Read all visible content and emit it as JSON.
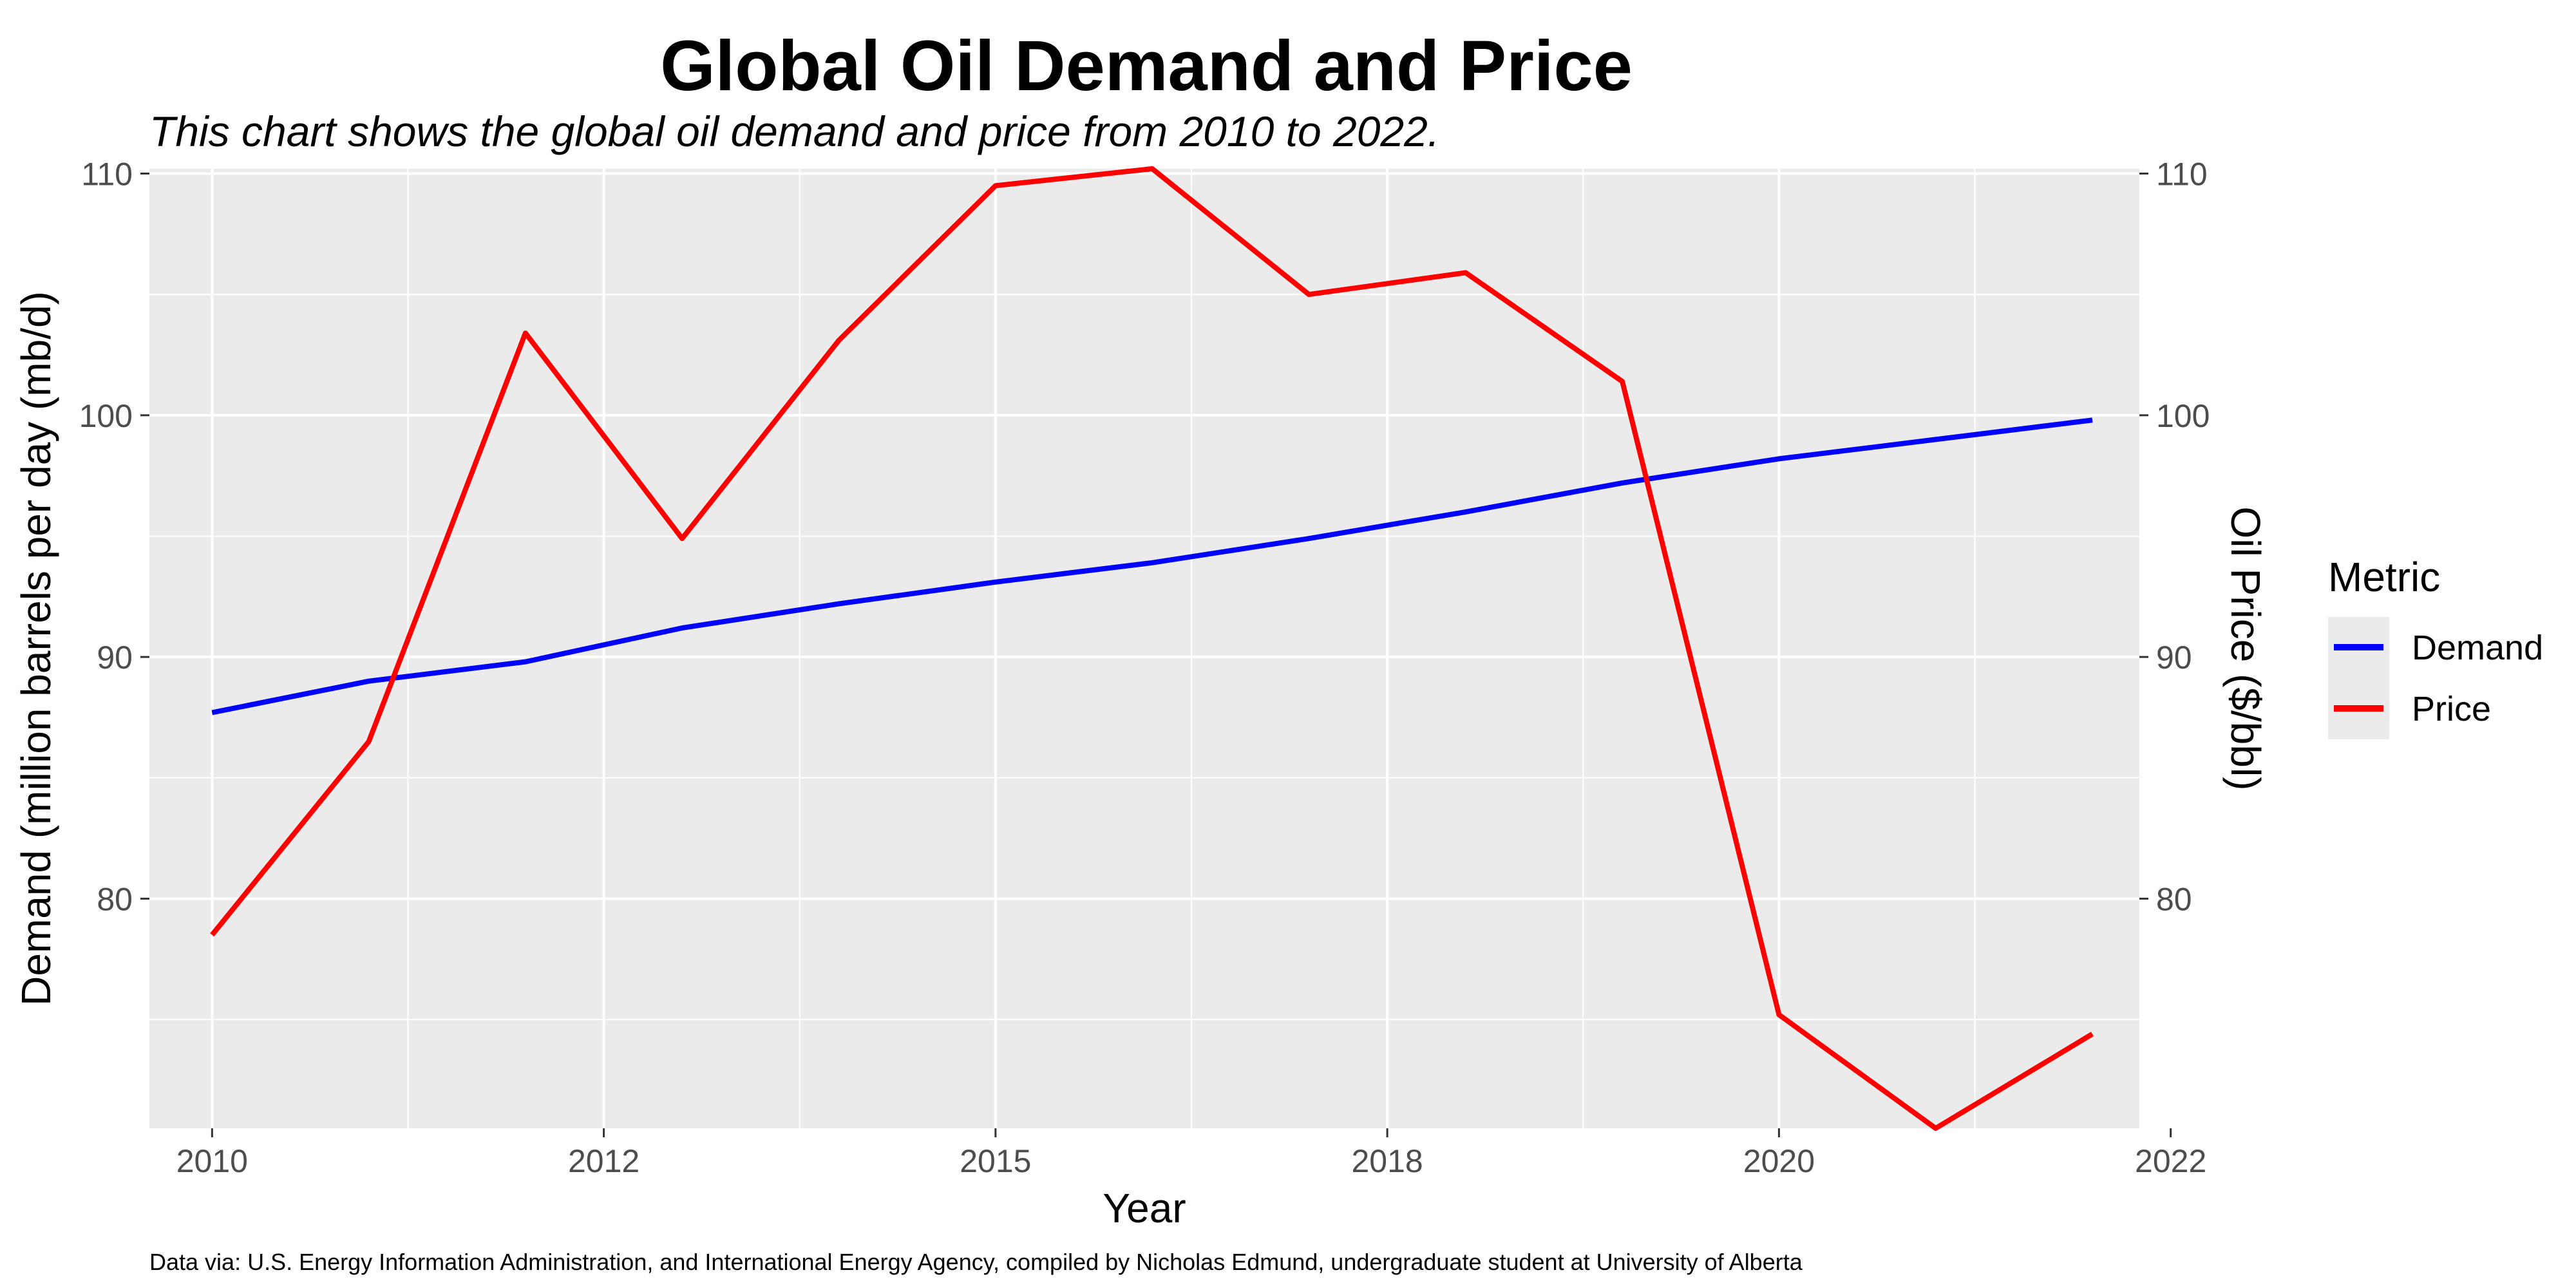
{
  "chart_data": {
    "type": "line",
    "title": "Global Oil Demand and Price",
    "subtitle": "This chart shows the global oil demand and price from 2010 to 2022.",
    "xlabel": "Year",
    "ylabel": "Demand (million barrels per day (mb/d)",
    "y2label": "Oil Price ($/bbl)",
    "caption": "Data via: U.S. Energy Information Administration, and International Energy Agency, compiled by Nicholas Edmund, undergraduate student at University of Alberta",
    "xlim": [
      2009.6,
      2022.3
    ],
    "ylim": [
      70.5,
      110.2
    ],
    "x_ticks": [
      {
        "value": 2010,
        "label": "2010"
      },
      {
        "value": 2012.5,
        "label": "2012"
      },
      {
        "value": 2015,
        "label": "2015"
      },
      {
        "value": 2017.5,
        "label": "2018"
      },
      {
        "value": 2020,
        "label": "2020"
      },
      {
        "value": 2022.5,
        "label": "2022"
      }
    ],
    "y_ticks": [
      80,
      90,
      100,
      110
    ],
    "y2_ticks": [
      80,
      90,
      100,
      110
    ],
    "grid": true,
    "legend": {
      "title": "Metric",
      "position": "right"
    },
    "series": [
      {
        "name": "Demand",
        "color": "#0000ff",
        "x": [
          2010,
          2011,
          2012,
          2013,
          2014,
          2015,
          2016,
          2017,
          2018,
          2019,
          2020,
          2021,
          2022
        ],
        "values": [
          87.7,
          89.0,
          89.8,
          91.2,
          92.2,
          93.1,
          93.9,
          94.9,
          96.0,
          97.2,
          98.2,
          99.0,
          99.8
        ]
      },
      {
        "name": "Price",
        "color": "#ff0000",
        "x": [
          2010,
          2011,
          2012,
          2013,
          2014,
          2015,
          2016,
          2017,
          2018,
          2019,
          2020,
          2021,
          2022
        ],
        "values": [
          78.5,
          86.5,
          103.4,
          94.9,
          103.1,
          109.5,
          110.2,
          105.0,
          105.9,
          101.4,
          75.2,
          70.5,
          74.4
        ]
      }
    ]
  }
}
